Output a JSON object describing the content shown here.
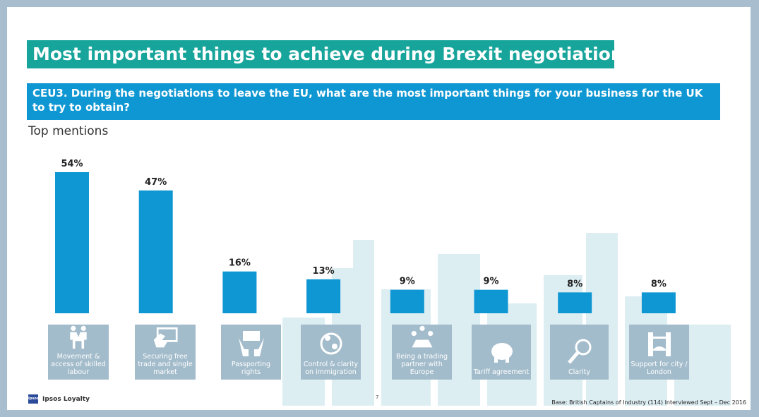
{
  "title": "Most important things to achieve during Brexit negotiations",
  "question": "CEU3. During the negotiations to leave the EU, what are the most important things for your business for the UK to try to obtain?",
  "subtitle": "Top mentions",
  "chart_data": {
    "type": "bar",
    "categories": [
      "Movement & access of skilled labour",
      "Securing free trade and single market",
      "Passporting rights",
      "Control & clarity on immigration",
      "Being a trading partner with Europe",
      "Tariff agreement",
      "Clarity",
      "Support for city / London"
    ],
    "values": [
      54,
      47,
      16,
      13,
      9,
      9,
      8,
      8
    ],
    "labels": [
      "54%",
      "47%",
      "16%",
      "13%",
      "9%",
      "9%",
      "8%",
      "8%"
    ],
    "icons": [
      "handshake-icon",
      "credit-card-icon",
      "money-hands-icon",
      "people-cycle-icon",
      "meeting-table-icon",
      "piggy-bank-icon",
      "magnifier-icon",
      "tower-bridge-icon"
    ],
    "bar_color": "#0f97d3",
    "ylim": [
      0,
      54
    ]
  },
  "footer": {
    "brand": "Ipsos Loyalty",
    "logo_text": "Ipsos",
    "page": "7",
    "base": "Base: British Captains of Industry (114) Interviewed Sept – Dec 2016"
  }
}
